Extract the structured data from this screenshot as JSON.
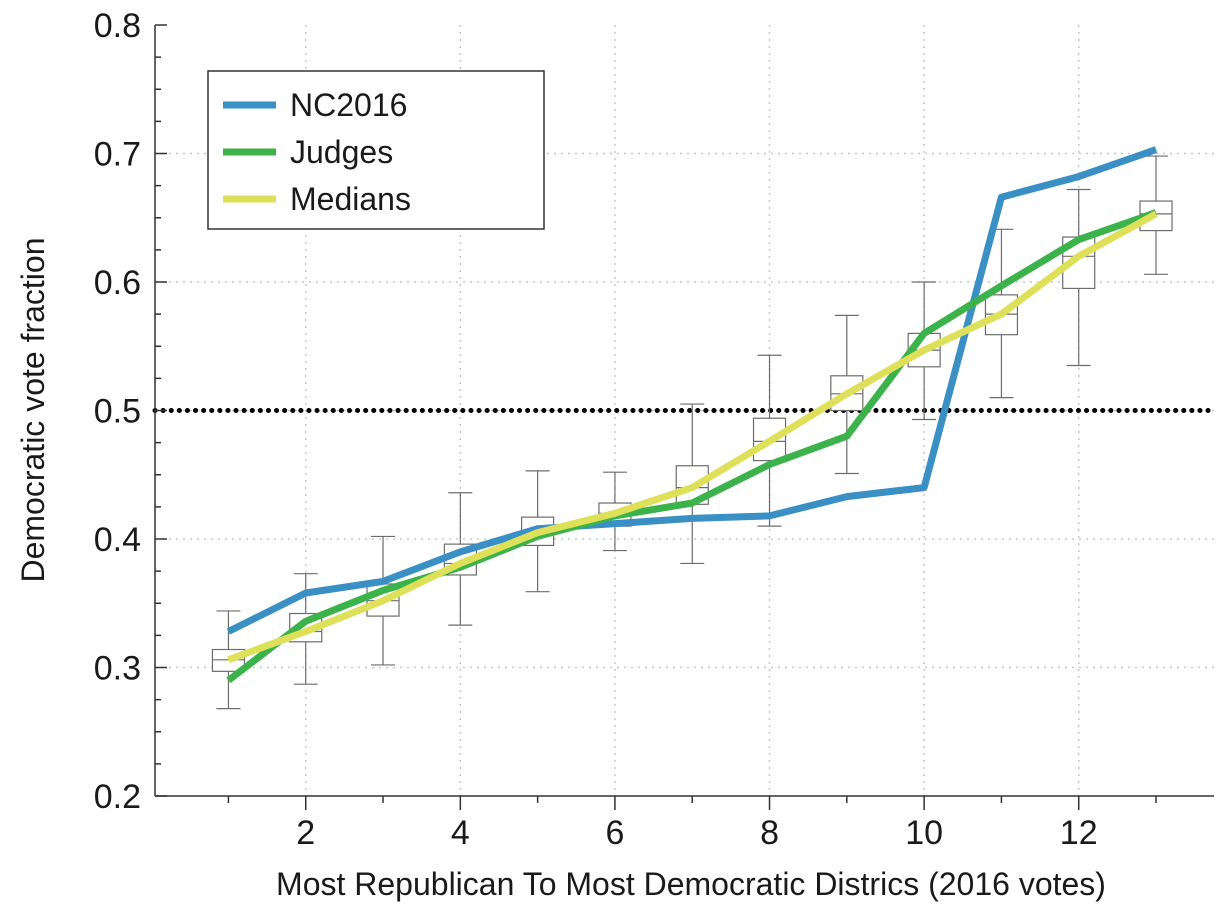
{
  "chart_data": {
    "type": "line",
    "xlabel": "Most Republican To Most Democratic Districs (2016 votes)",
    "ylabel": "Democratic vote fraction",
    "xlim": [
      0.05,
      13.75
    ],
    "ylim": [
      0.2,
      0.8
    ],
    "x_ticks": [
      2,
      4,
      6,
      8,
      10,
      12
    ],
    "y_ticks": [
      0.2,
      0.3,
      0.4,
      0.5,
      0.6,
      0.7,
      0.8
    ],
    "y_tick_labels": [
      "0.2",
      "0.3",
      "0.4",
      "0.5",
      "0.6",
      "0.7",
      "0.8"
    ],
    "x_minor_ticks": [
      1,
      3,
      5,
      7,
      9,
      11,
      13
    ],
    "grid": true,
    "reference_line": {
      "y": 0.5,
      "style": "dotted",
      "color": "#000000"
    },
    "legend": {
      "placement": "top-left"
    },
    "x": [
      1,
      2,
      3,
      4,
      5,
      6,
      7,
      8,
      9,
      10,
      11,
      12,
      13
    ],
    "series": [
      {
        "name": "NC2016",
        "color": "#3a8fc4",
        "values": [
          0.328,
          0.358,
          0.367,
          0.39,
          0.408,
          0.412,
          0.416,
          0.418,
          0.433,
          0.44,
          0.666,
          0.682,
          0.703
        ]
      },
      {
        "name": "Judges",
        "color": "#3cb34a",
        "values": [
          0.29,
          0.336,
          0.36,
          0.378,
          0.402,
          0.418,
          0.428,
          0.458,
          0.48,
          0.56,
          0.597,
          0.633,
          0.654
        ]
      },
      {
        "name": "Medians",
        "color": "#dfe05a",
        "values": [
          0.306,
          0.328,
          0.352,
          0.381,
          0.405,
          0.42,
          0.44,
          0.476,
          0.513,
          0.547,
          0.575,
          0.62,
          0.653
        ]
      }
    ],
    "boxplots": [
      {
        "x": 1,
        "whisker_low": 0.268,
        "q1": 0.297,
        "median": 0.306,
        "q3": 0.314,
        "whisker_high": 0.344
      },
      {
        "x": 2,
        "whisker_low": 0.287,
        "q1": 0.32,
        "median": 0.328,
        "q3": 0.342,
        "whisker_high": 0.373
      },
      {
        "x": 3,
        "whisker_low": 0.302,
        "q1": 0.34,
        "median": 0.352,
        "q3": 0.365,
        "whisker_high": 0.402
      },
      {
        "x": 4,
        "whisker_low": 0.333,
        "q1": 0.372,
        "median": 0.381,
        "q3": 0.396,
        "whisker_high": 0.436
      },
      {
        "x": 5,
        "whisker_low": 0.359,
        "q1": 0.395,
        "median": 0.405,
        "q3": 0.417,
        "whisker_high": 0.453
      },
      {
        "x": 6,
        "whisker_low": 0.391,
        "q1": 0.41,
        "median": 0.42,
        "q3": 0.428,
        "whisker_high": 0.452
      },
      {
        "x": 7,
        "whisker_low": 0.381,
        "q1": 0.427,
        "median": 0.44,
        "q3": 0.457,
        "whisker_high": 0.505
      },
      {
        "x": 8,
        "whisker_low": 0.41,
        "q1": 0.461,
        "median": 0.476,
        "q3": 0.494,
        "whisker_high": 0.543
      },
      {
        "x": 9,
        "whisker_low": 0.451,
        "q1": 0.5,
        "median": 0.513,
        "q3": 0.527,
        "whisker_high": 0.574
      },
      {
        "x": 10,
        "whisker_low": 0.493,
        "q1": 0.534,
        "median": 0.547,
        "q3": 0.56,
        "whisker_high": 0.6
      },
      {
        "x": 11,
        "whisker_low": 0.51,
        "q1": 0.559,
        "median": 0.575,
        "q3": 0.59,
        "whisker_high": 0.641
      },
      {
        "x": 12,
        "whisker_low": 0.535,
        "q1": 0.595,
        "median": 0.62,
        "q3": 0.635,
        "whisker_high": 0.672
      },
      {
        "x": 13,
        "whisker_low": 0.606,
        "q1": 0.64,
        "median": 0.653,
        "q3": 0.663,
        "whisker_high": 0.698
      }
    ]
  }
}
